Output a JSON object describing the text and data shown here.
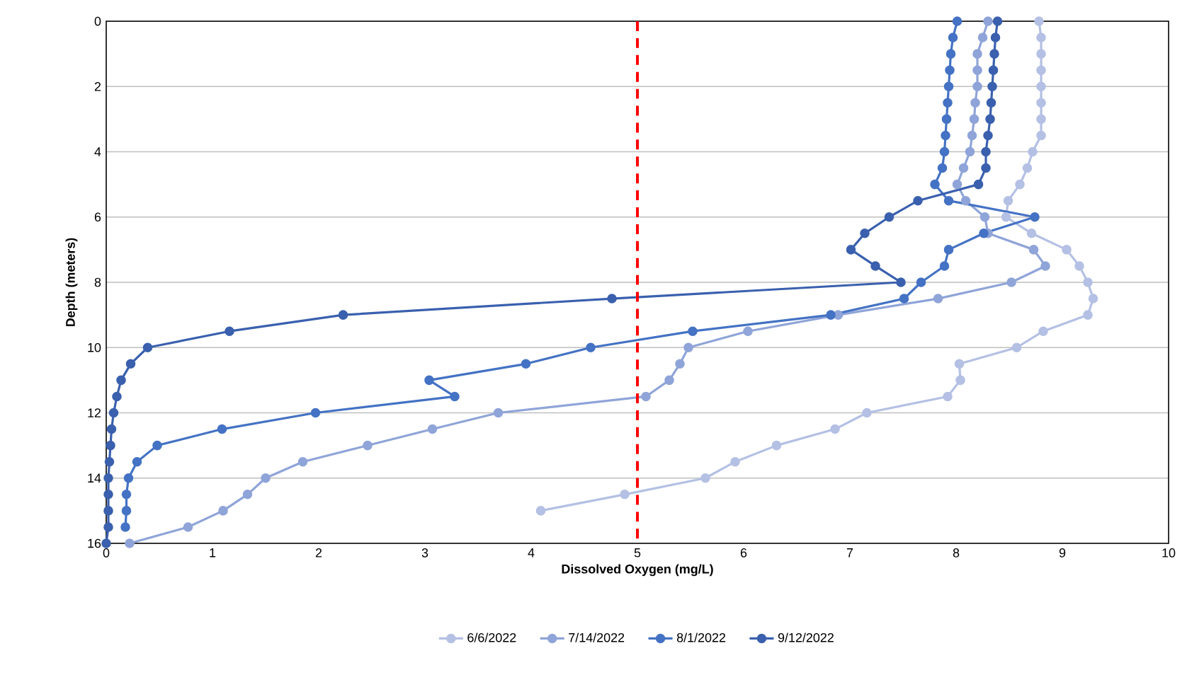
{
  "chart_data": {
    "type": "line",
    "xlabel": "Dissolved Oxygen (mg/L)",
    "ylabel": "Depth (meters)",
    "xlim": [
      0,
      10
    ],
    "xticks": [
      0,
      1,
      2,
      3,
      4,
      5,
      6,
      7,
      8,
      9,
      10
    ],
    "ylim": [
      16,
      0
    ],
    "yticks": [
      0,
      2,
      4,
      6,
      8,
      10,
      12,
      14,
      16
    ],
    "grid": "y",
    "legend": "bottom",
    "marker": "circle",
    "line_style": "solid",
    "ref_lines": [
      {
        "axis": "x",
        "value": 5,
        "color": "#ff0000",
        "line_style": "dashed"
      }
    ],
    "series": [
      {
        "name": "6/6/2022",
        "color": "#b4c0e4",
        "x": [
          8.78,
          8.8,
          8.8,
          8.8,
          8.8,
          8.8,
          8.8,
          8.8,
          8.72,
          8.67,
          8.6,
          8.49,
          8.47,
          8.71,
          9.04,
          9.16,
          9.24,
          9.29,
          9.24,
          8.82,
          8.57,
          8.03,
          8.04,
          7.92,
          7.16,
          6.86,
          6.31,
          5.92,
          5.64,
          4.88,
          4.09
        ],
        "values": [
          0,
          0.5,
          1,
          1.5,
          2,
          2.5,
          3,
          3.5,
          4,
          4.5,
          5,
          5.5,
          6,
          6.5,
          7,
          7.5,
          8,
          8.5,
          9,
          9.5,
          10,
          10.5,
          11,
          11.5,
          12,
          12.5,
          13,
          13.5,
          14,
          14.5,
          15
        ]
      },
      {
        "name": "7/14/2022",
        "color": "#8fa4d8",
        "x": [
          8.3,
          8.25,
          8.2,
          8.2,
          8.2,
          8.18,
          8.17,
          8.15,
          8.13,
          8.07,
          8.01,
          8.09,
          8.27,
          8.3,
          8.73,
          8.84,
          8.52,
          7.83,
          6.89,
          6.04,
          5.48,
          5.4,
          5.3,
          5.08,
          3.69,
          3.07,
          2.46,
          1.85,
          1.5,
          1.33,
          1.1,
          0.77,
          0.22
        ],
        "values": [
          0,
          0.5,
          1,
          1.5,
          2,
          2.5,
          3,
          3.5,
          4,
          4.5,
          5,
          5.5,
          6,
          6.5,
          7,
          7.5,
          8,
          8.5,
          9,
          9.5,
          10,
          10.5,
          11,
          11.5,
          12,
          12.5,
          13,
          13.5,
          14,
          14.5,
          15,
          15.5,
          16
        ]
      },
      {
        "name": "8/1/2022",
        "color": "#4472c4",
        "x": [
          8.01,
          7.97,
          7.95,
          7.94,
          7.93,
          7.92,
          7.91,
          7.9,
          7.89,
          7.87,
          7.8,
          7.93,
          8.74,
          8.26,
          7.93,
          7.89,
          7.67,
          7.51,
          6.82,
          5.52,
          4.56,
          3.95,
          3.04,
          3.28,
          1.97,
          1.09,
          0.48,
          0.29,
          0.21,
          0.19,
          0.19,
          0.18
        ],
        "values": [
          0,
          0.5,
          1,
          1.5,
          2,
          2.5,
          3,
          3.5,
          4,
          4.5,
          5,
          5.5,
          6,
          6.5,
          7,
          7.5,
          8,
          8.5,
          9,
          9.5,
          10,
          10.5,
          11,
          11.5,
          12,
          12.5,
          13,
          13.5,
          14,
          14.5,
          15,
          15.5
        ]
      },
      {
        "name": "9/12/2022",
        "color": "#3a60ae",
        "x": [
          8.39,
          8.37,
          8.36,
          8.35,
          8.34,
          8.33,
          8.32,
          8.3,
          8.28,
          8.28,
          8.21,
          7.64,
          7.37,
          7.14,
          7.01,
          7.24,
          7.48,
          4.76,
          2.23,
          1.16,
          0.39,
          0.23,
          0.14,
          0.1,
          0.07,
          0.05,
          0.04,
          0.03,
          0.02,
          0.02,
          0.02,
          0.02,
          0.0
        ],
        "values": [
          0,
          0.5,
          1,
          1.5,
          2,
          2.5,
          3,
          3.5,
          4,
          4.5,
          5,
          5.5,
          6,
          6.5,
          7,
          7.5,
          8,
          8.5,
          9,
          9.5,
          10,
          10.5,
          11,
          11.5,
          12,
          12.5,
          13,
          13.5,
          14,
          14.5,
          15,
          15.5,
          16
        ]
      }
    ]
  }
}
